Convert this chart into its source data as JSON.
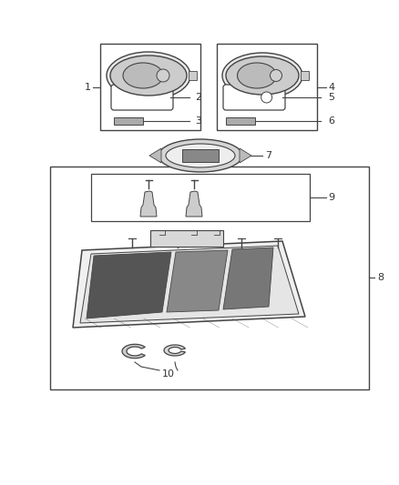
{
  "bg_color": "#ffffff",
  "line_color": "#444444",
  "label_color": "#333333",
  "fig_width": 4.38,
  "fig_height": 5.33,
  "dpi": 100
}
